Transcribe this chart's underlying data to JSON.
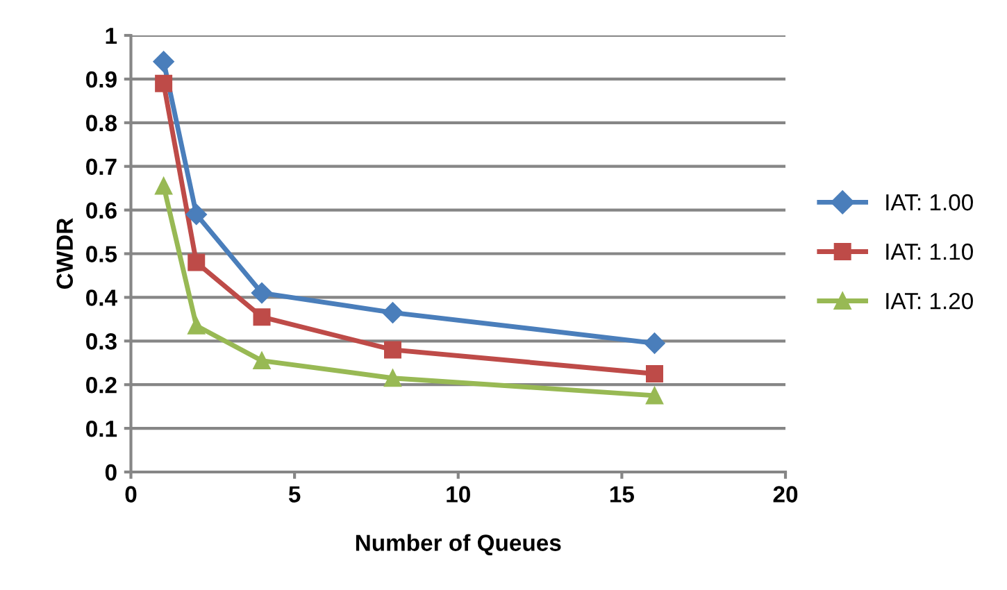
{
  "chart_data": {
    "type": "line",
    "xlabel": "Number of Queues",
    "ylabel": "CWDR",
    "x": [
      1,
      2,
      4,
      8,
      16
    ],
    "series": [
      {
        "name": "IAT: 1.00",
        "color": "#4a7ebb",
        "marker": "diamond",
        "values": [
          0.94,
          0.59,
          0.41,
          0.365,
          0.295
        ]
      },
      {
        "name": "IAT: 1.10",
        "color": "#be4b48",
        "marker": "square",
        "values": [
          0.89,
          0.48,
          0.355,
          0.28,
          0.225
        ]
      },
      {
        "name": "IAT: 1.20",
        "color": "#98b954",
        "marker": "triangle",
        "values": [
          0.655,
          0.335,
          0.255,
          0.215,
          0.175
        ]
      }
    ],
    "xlim": [
      0,
      20
    ],
    "xticks": [
      0,
      5,
      10,
      15,
      20
    ],
    "ylim": [
      0,
      1
    ],
    "yticks": [
      0,
      0.1,
      0.2,
      0.3,
      0.4,
      0.5,
      0.6,
      0.7,
      0.8,
      0.9,
      1
    ],
    "grid": "y",
    "legend": "right"
  }
}
